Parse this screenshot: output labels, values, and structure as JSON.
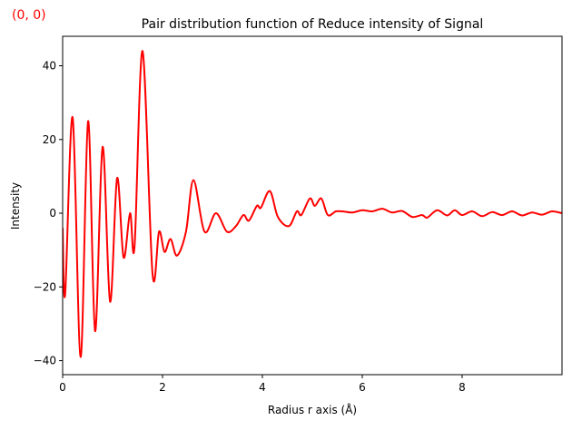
{
  "chart_data": {
    "type": "line",
    "title": "Pair distribution function of Reduce intensity of  Signal",
    "annotation": "(0, 0)",
    "xlabel": "Radius r axis (Å)",
    "ylabel": "Intensity",
    "xlim": [
      0,
      10
    ],
    "ylim": [
      -43.8,
      48
    ],
    "xticks": [
      0,
      2,
      4,
      6,
      8
    ],
    "yticks": [
      {
        "value": -40,
        "label": "−40"
      },
      {
        "value": -20,
        "label": "−20"
      },
      0,
      20,
      40
    ],
    "series": [
      {
        "name": "Signal",
        "color": "#ff0000",
        "x": [
          0,
          0.05,
          0.2,
          0.36,
          0.51,
          0.65,
          0.8,
          0.95,
          1.09,
          1.22,
          1.35,
          1.44,
          1.6,
          1.8,
          1.93,
          2.04,
          2.16,
          2.29,
          2.47,
          2.62,
          2.84,
          3.07,
          3.29,
          3.47,
          3.62,
          3.73,
          3.89,
          3.97,
          4.15,
          4.31,
          4.53,
          4.69,
          4.78,
          4.95,
          5.05,
          5.18,
          5.31,
          5.47,
          5.6,
          5.8,
          6.0,
          6.2,
          6.4,
          6.6,
          6.8,
          7.0,
          7.2,
          7.3,
          7.5,
          7.7,
          7.85,
          8.0,
          8.2,
          8.4,
          8.6,
          8.8,
          9.0,
          9.2,
          9.4,
          9.6,
          9.8,
          10.0
        ],
        "values": [
          -4,
          -22,
          26,
          -39,
          25,
          -32,
          18,
          -24,
          9.5,
          -12,
          0,
          -9,
          44,
          -16.5,
          -5,
          -10.5,
          -7,
          -11.5,
          -5,
          9,
          -5,
          0,
          -5,
          -3.5,
          -0.5,
          -2,
          2,
          1.5,
          6,
          -1,
          -3.5,
          0.5,
          -0.5,
          4,
          2,
          4,
          -0.5,
          0.5,
          0.5,
          0.2,
          0.8,
          0.5,
          1.2,
          0.2,
          0.6,
          -1,
          -0.5,
          -1.2,
          0.8,
          -0.6,
          0.8,
          -0.5,
          0.5,
          -0.8,
          0.3,
          -0.5,
          0.5,
          -0.6,
          0.2,
          -0.4,
          0.5,
          0
        ]
      }
    ]
  }
}
